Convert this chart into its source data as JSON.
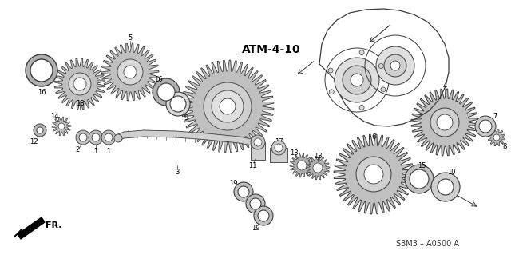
{
  "bg_color": "#ffffff",
  "title_text": "ATM-4-10",
  "footer_text": "S3M3 – A0500 A",
  "fr_text": "FR.",
  "lc": "#2a2a2a",
  "gc": "#3a3a3a",
  "fc_gear": "#c8c8c8",
  "fc_washer": "#d0d0d0",
  "fc_ring": "#e8e8e8"
}
